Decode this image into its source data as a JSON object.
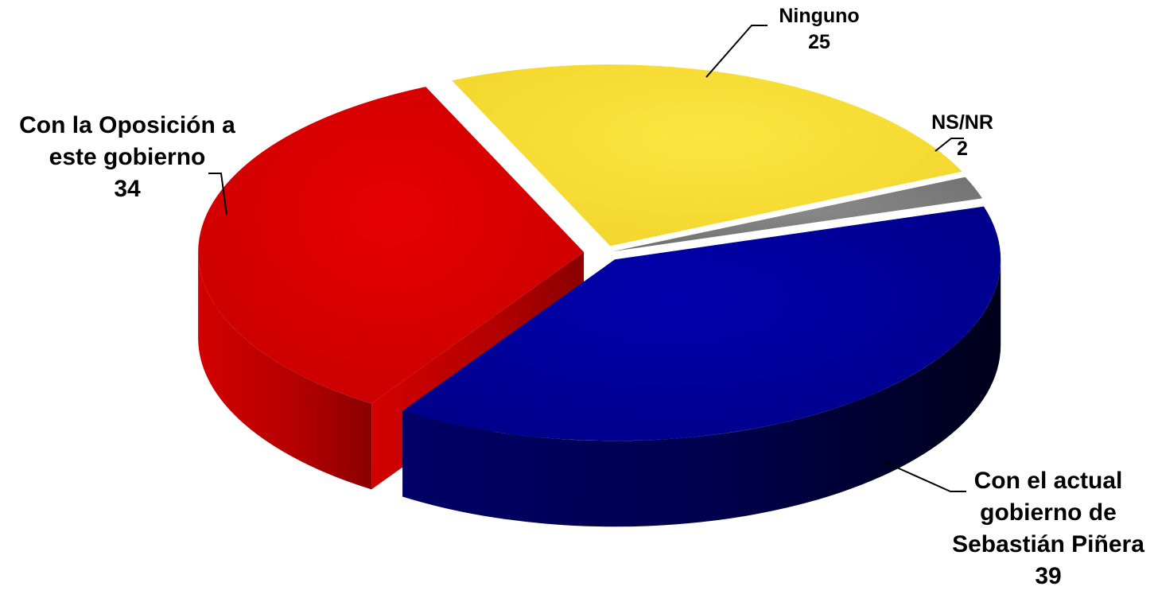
{
  "chart_data": {
    "type": "pie",
    "style": "3d-exploded",
    "slices": [
      {
        "label_lines": [
          "Con el actual",
          "gobierno de",
          "Sebastián Piñera"
        ],
        "value": 39,
        "color": "#00009b"
      },
      {
        "label_lines": [
          "Con la Oposición a",
          "este gobierno"
        ],
        "value": 34,
        "color": "#dd0000"
      },
      {
        "label_lines": [
          "Ninguno"
        ],
        "value": 25,
        "color": "#f9e13a"
      },
      {
        "label_lines": [
          "NS/NR"
        ],
        "value": 2,
        "color": "#7f7f7f"
      }
    ]
  }
}
